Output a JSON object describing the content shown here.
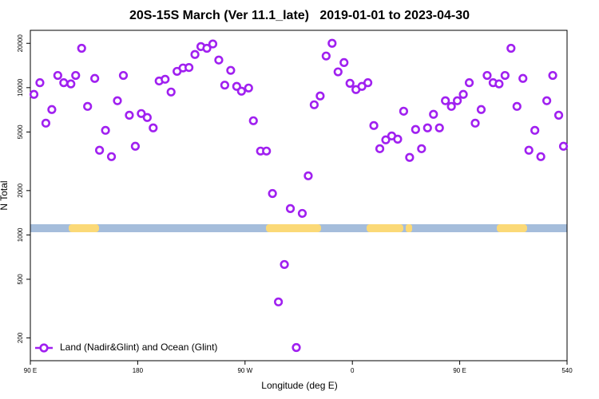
{
  "chart_data": {
    "type": "scatter",
    "title": "20S-15S March (Ver 11.1_late)   2019-01-01 to 2023-04-30",
    "xlabel": "Longitude (deg E)",
    "ylabel": "N Total",
    "xlim": [
      90,
      540
    ],
    "ylim": [
      140,
      24500
    ],
    "ylog": true,
    "xticks": [
      {
        "value": 90,
        "label": "90 E"
      },
      180,
      {
        "value": 270,
        "label": "90 W"
      },
      {
        "value": 360,
        "label": "0"
      },
      {
        "value": 450,
        "label": "90 E"
      },
      540
    ],
    "yticks": [
      200,
      500,
      1000,
      2000,
      5000,
      10000,
      20000
    ],
    "legend": "lower left",
    "series": [
      {
        "name": "Land (Nadir&Glint) and Ocean (Glint)",
        "color": "#a020f0",
        "x": [
          93,
          98,
          103,
          108,
          113,
          118,
          124,
          128,
          133,
          138,
          144,
          148,
          153,
          158,
          163,
          168,
          173,
          178,
          183,
          188,
          193,
          198,
          203,
          208,
          213,
          218,
          223,
          228,
          233,
          238,
          243,
          248,
          253,
          258,
          263,
          267,
          273,
          277,
          283,
          288,
          293,
          298,
          303,
          308,
          313,
          318,
          323,
          328,
          333,
          338,
          343,
          348,
          353,
          358,
          363,
          368,
          373,
          378,
          383,
          388,
          393,
          398,
          403,
          408,
          413,
          418,
          423,
          428,
          433,
          438,
          443,
          448,
          453,
          458,
          463,
          468,
          473,
          478,
          483,
          488,
          493,
          498,
          503,
          508,
          513,
          518,
          523,
          528,
          533,
          537
        ],
        "values": [
          9000,
          10800,
          5740,
          7100,
          12100,
          10800,
          10600,
          12100,
          18500,
          7460,
          11550,
          3760,
          5130,
          3400,
          8150,
          12100,
          6500,
          4000,
          6670,
          6270,
          5330,
          11100,
          11400,
          9340,
          12900,
          13600,
          13700,
          16800,
          19000,
          18500,
          19800,
          15400,
          10400,
          13100,
          10200,
          9460,
          9940,
          5960,
          3710,
          3710,
          1910,
          351,
          630,
          1510,
          172,
          1400,
          2520,
          7650,
          8780,
          16400,
          20000,
          12800,
          14800,
          10700,
          9700,
          10200,
          10800,
          5530,
          3850,
          4420,
          4700,
          4470,
          6920,
          3360,
          5200,
          3850,
          5330,
          6590,
          5330,
          8150,
          7460,
          8150,
          9000,
          10800,
          5740,
          7100,
          12100,
          10800,
          10600,
          12100,
          18500,
          7460,
          11550,
          3760,
          5130,
          3400,
          8150,
          12100,
          6500,
          4000
        ]
      }
    ]
  }
}
